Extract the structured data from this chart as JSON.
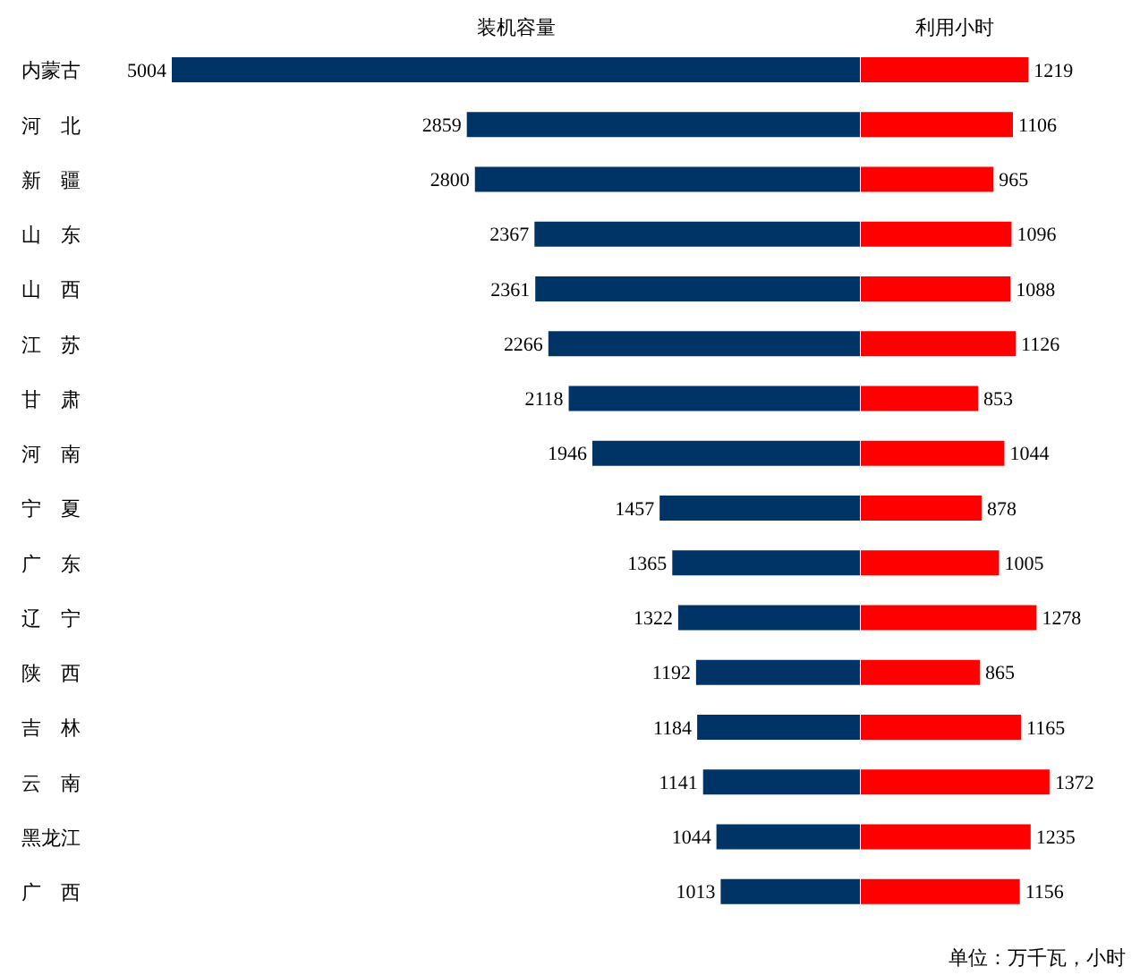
{
  "chart_data": [
    {
      "type": "bar",
      "orientation": "horizontal",
      "title": "装机容量",
      "categories": [
        "内蒙古",
        "河　北",
        "新　疆",
        "山　东",
        "山　西",
        "江　苏",
        "甘　肃",
        "河　南",
        "宁　夏",
        "广　东",
        "辽　宁",
        "陕　西",
        "吉　林",
        "云　南",
        "黑龙江",
        "广　西"
      ],
      "values": [
        5004,
        2859,
        2800,
        2367,
        2361,
        2266,
        2118,
        1946,
        1457,
        1365,
        1322,
        1192,
        1184,
        1141,
        1044,
        1013
      ],
      "color": "#003366",
      "data_labels": true,
      "tick_labels": "y"
    },
    {
      "type": "bar",
      "orientation": "horizontal",
      "title": "利用小时",
      "values": [
        1219,
        1106,
        965,
        1096,
        1088,
        1126,
        853,
        1044,
        878,
        1005,
        1278,
        865,
        1165,
        1372,
        1235,
        1156
      ],
      "color": "#ff0000",
      "data_labels": true,
      "tick_labels": false,
      "annotations": [
        "单位：万千瓦，小时"
      ]
    }
  ]
}
